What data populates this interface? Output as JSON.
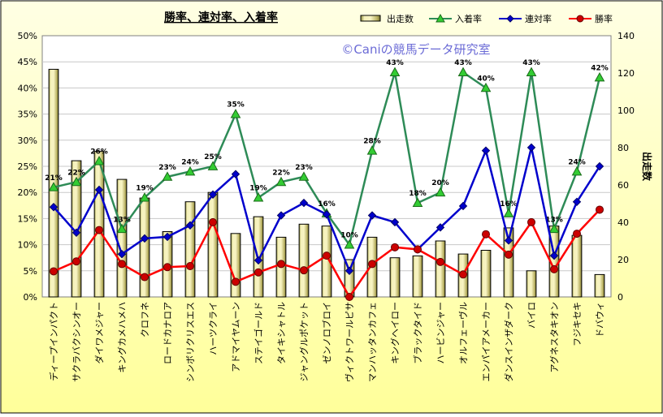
{
  "chart_data": {
    "type": "bar+line",
    "title": "勝率、連対率、入着率",
    "watermark": "©Caniの競馬データ研究室",
    "y2label": "出走数",
    "ylim": [
      0,
      50
    ],
    "y2lim": [
      0,
      140
    ],
    "yticks": [
      "0%",
      "5%",
      "10%",
      "15%",
      "20%",
      "25%",
      "30%",
      "35%",
      "40%",
      "45%",
      "50%"
    ],
    "y2ticks": [
      "0",
      "20",
      "40",
      "60",
      "80",
      "100",
      "120",
      "140"
    ],
    "grid": true,
    "legend_position": "top-right",
    "categories": [
      "ディープインパクト",
      "サクラバクシンオー",
      "ダイワメジャー",
      "キングカメハメハ",
      "クロフネ",
      "ロードカナロア",
      "シンボリクリスエス",
      "ハーツクライ",
      "アドマイヤムーン",
      "ステイゴールド",
      "タイキシャトル",
      "ジャングルポケット",
      "ゼンノロブロイ",
      "ヴィクトワールピサ",
      "マンハッタンカフェ",
      "キングヘイロー",
      "ブラックタイド",
      "ハービンジャー",
      "オルフェーヴル",
      "エンパイアメーカー",
      "ダンスインザダーク",
      "バイロ",
      "アグネスタキオン",
      "フジキセキ",
      "ドバウィ"
    ],
    "series": [
      {
        "name": "出走数",
        "kind": "bar",
        "axis": "right",
        "color": "#f0e890",
        "values": [
          122,
          73,
          78,
          63,
          53,
          35,
          51,
          56,
          34,
          43,
          32,
          39,
          38,
          20,
          32,
          21,
          22,
          30,
          23,
          25,
          37,
          14,
          38,
          33,
          12
        ]
      },
      {
        "name": "入着率",
        "kind": "line",
        "axis": "left",
        "color": "#2e8b57",
        "marker": "triangle",
        "marker_color": "#33cc33",
        "values": [
          21,
          22,
          26,
          13,
          19,
          23,
          24,
          25,
          35,
          19,
          22,
          23,
          16,
          10,
          28,
          43,
          18,
          20,
          43,
          40,
          16,
          43,
          13,
          24,
          42
        ],
        "labels": [
          "21%",
          "22%",
          "26%",
          "13%",
          "19%",
          "23%",
          "24%",
          "25%",
          "35%",
          "19%",
          "22%",
          "23%",
          "16%",
          "10%",
          "28%",
          "43%",
          "18%",
          "20%",
          "43%",
          "40%",
          "16%",
          "43%",
          "13%",
          "24%",
          "42%"
        ]
      },
      {
        "name": "連対率",
        "kind": "line",
        "axis": "left",
        "color": "#0000cc",
        "marker": "diamond",
        "marker_color": "#0000cc",
        "values": [
          17.2,
          12.3,
          20.5,
          8.2,
          11.2,
          11.5,
          13.7,
          19.6,
          23.5,
          7.0,
          15.6,
          18.0,
          15.8,
          5.0,
          15.6,
          14.3,
          9.1,
          13.3,
          17.4,
          28.0,
          10.8,
          28.6,
          7.9,
          18.2,
          25.0
        ]
      },
      {
        "name": "勝率",
        "kind": "line",
        "axis": "left",
        "color": "#ff0000",
        "marker": "circle",
        "marker_color": "#cc0000",
        "values": [
          4.9,
          6.8,
          12.8,
          6.3,
          3.8,
          5.7,
          5.9,
          14.3,
          2.9,
          4.7,
          6.3,
          5.1,
          7.9,
          0.0,
          6.3,
          9.5,
          9.1,
          6.7,
          4.3,
          12.0,
          8.1,
          14.3,
          5.3,
          12.1,
          16.7
        ]
      }
    ]
  }
}
